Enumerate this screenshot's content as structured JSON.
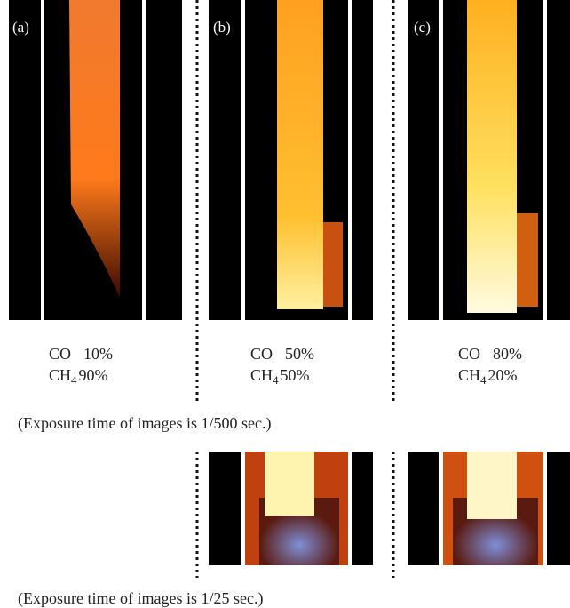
{
  "panels": [
    {
      "label": "(a)",
      "gas1": "CO",
      "value1": "10%",
      "gas2": "CH",
      "sub2": "4",
      "value2": "90%"
    },
    {
      "label": "(b)",
      "gas1": "CO",
      "value1": "50%",
      "gas2": "CH",
      "sub2": "4",
      "value2": "50%"
    },
    {
      "label": "(c)",
      "gas1": "CO",
      "value1": "80%",
      "gas2": "CH",
      "sub2": "4",
      "value2": "20%"
    }
  ],
  "captions": [
    "(Exposure time of images is 1/500 sec.)",
    "(Exposure time of images is 1/25 sec.)"
  ]
}
